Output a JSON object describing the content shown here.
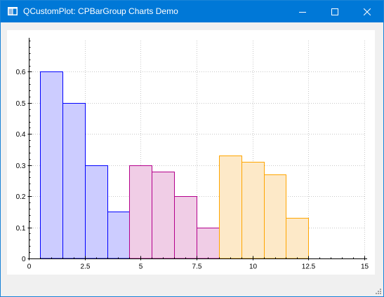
{
  "window": {
    "title": "QCustomPlot: CPBarGroup Charts Demo",
    "icon": "app-window-icon",
    "controls": {
      "minimize_icon": "minimize-icon",
      "maximize_icon": "maximize-icon",
      "close_icon": "close-icon"
    },
    "titlebar_color": "#0078d7"
  },
  "chart_data": {
    "type": "bar",
    "title": "",
    "xlabel": "",
    "ylabel": "",
    "xlim": [
      0,
      15
    ],
    "ylim": [
      0,
      0.7
    ],
    "grid": true,
    "x_ticks": [
      0,
      2.5,
      5,
      7.5,
      10,
      12.5,
      15
    ],
    "x_tick_labels": [
      "0",
      "2.5",
      "5",
      "7.5",
      "10",
      "12.5",
      "15"
    ],
    "y_ticks": [
      0,
      0.1,
      0.2,
      0.3,
      0.4,
      0.5,
      0.6
    ],
    "y_tick_labels": [
      "0",
      "0.1",
      "0.2",
      "0.3",
      "0.4",
      "0.5",
      "0.6"
    ],
    "bar_width": 1,
    "series": [
      {
        "color": "#0000ff",
        "fill": "#ccccff",
        "x": [
          1,
          2,
          3,
          4
        ],
        "values": [
          0.6,
          0.5,
          0.3,
          0.15
        ]
      },
      {
        "color": "#b4008c",
        "fill": "#f0cde6",
        "x": [
          5,
          6,
          7,
          8
        ],
        "values": [
          0.3,
          0.28,
          0.2,
          0.1
        ]
      },
      {
        "color": "#ffa500",
        "fill": "#fde9c8",
        "x": [
          9,
          10,
          11,
          12
        ],
        "values": [
          0.33,
          0.31,
          0.27,
          0.13
        ]
      }
    ]
  }
}
